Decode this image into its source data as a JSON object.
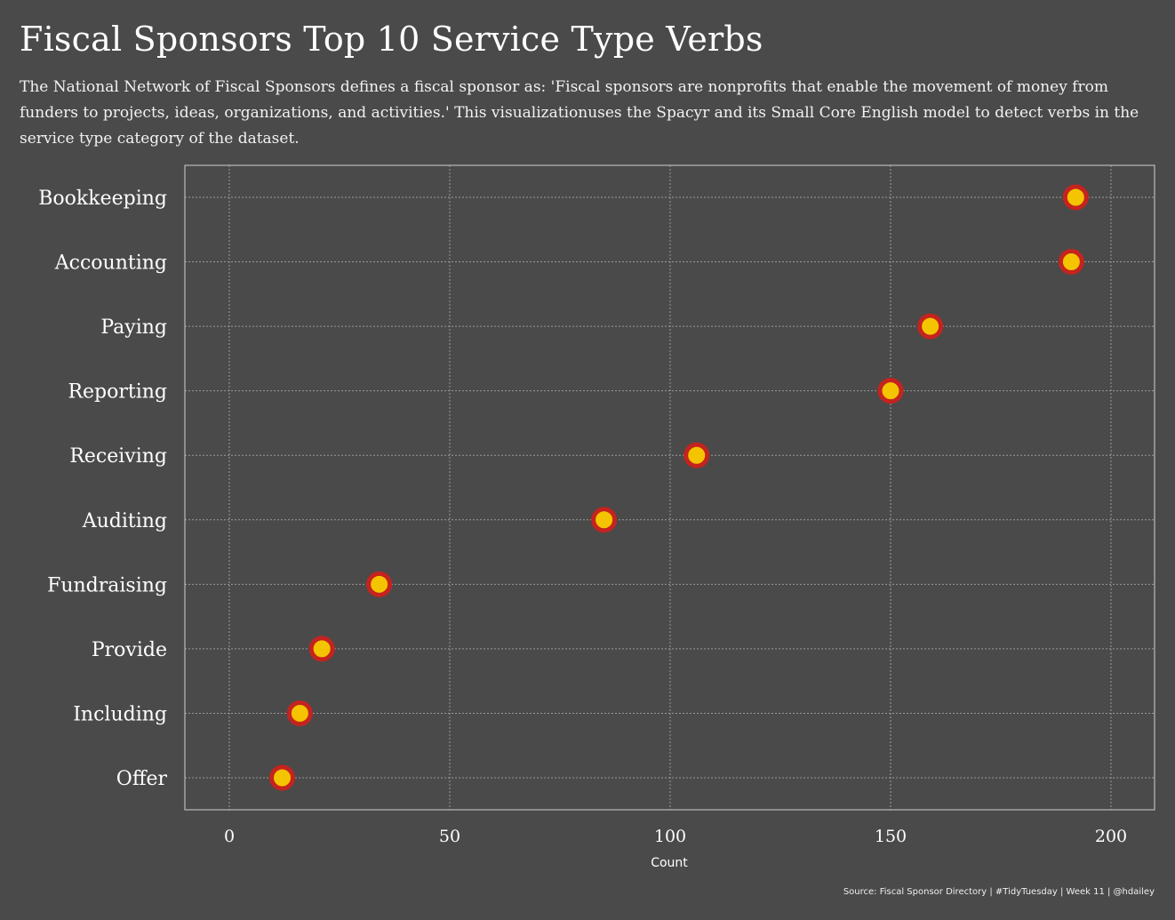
{
  "title": "Fiscal Sponsors Top 10 Service Type Verbs",
  "subtitle": "The National Network of Fiscal Sponsors defines a fiscal sponsor as: 'Fiscal sponsors are nonprofits that enable the movement of money from funders to projects, ideas, organizations, and activities.' This visualizationuses the Spacyr and its Small Core English model to detect verbs in the service type category of the dataset.",
  "caption": "Source: Fiscal Sponsor Directory  |  #TidyTuesday  |  Week 11  |  @hdailey",
  "colors": {
    "background": "#4a4a4a",
    "point_fill": "#f5c400",
    "point_stroke": "#c4231f",
    "grid": "#9a9a9a",
    "panel_border": "#d0d0d0",
    "text": "#ffffff"
  },
  "chart_data": {
    "type": "scatter",
    "style": "dot-plot",
    "categories": [
      "Bookkeeping",
      "Accounting",
      "Paying",
      "Reporting",
      "Receiving",
      "Auditing",
      "Fundraising",
      "Provide",
      "Including",
      "Offer"
    ],
    "values": [
      192,
      191,
      159,
      150,
      106,
      85,
      34,
      21,
      16,
      12
    ],
    "xlabel": "Count",
    "ylabel": "",
    "xlim": [
      -5,
      210
    ],
    "xticks": [
      0,
      50,
      100,
      150,
      200
    ],
    "grid": true
  }
}
